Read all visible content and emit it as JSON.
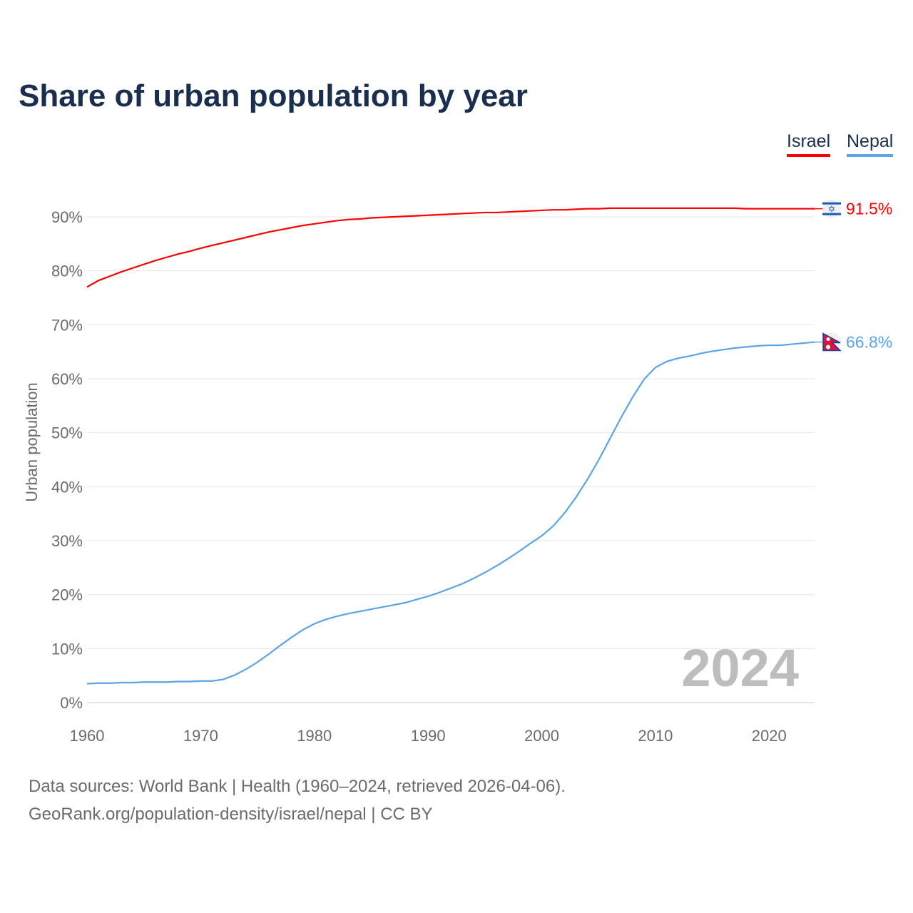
{
  "chart_data": {
    "type": "line",
    "title": "Share of urban population by year",
    "xlabel": "",
    "ylabel": "Urban population",
    "xlim": [
      1960,
      2024
    ],
    "ylim": [
      0,
      90
    ],
    "x_ticks": [
      "1960",
      "1970",
      "1980",
      "1990",
      "2000",
      "2010",
      "2020"
    ],
    "y_ticks": [
      "0%",
      "10%",
      "20%",
      "30%",
      "40%",
      "50%",
      "60%",
      "70%",
      "80%",
      "90%"
    ],
    "grid": true,
    "legend_placement": "top-right",
    "year_watermark": "2024",
    "x": [
      1960,
      1961,
      1962,
      1963,
      1964,
      1965,
      1966,
      1967,
      1968,
      1969,
      1970,
      1971,
      1972,
      1973,
      1974,
      1975,
      1976,
      1977,
      1978,
      1979,
      1980,
      1981,
      1982,
      1983,
      1984,
      1985,
      1986,
      1987,
      1988,
      1989,
      1990,
      1991,
      1992,
      1993,
      1994,
      1995,
      1996,
      1997,
      1998,
      1999,
      2000,
      2001,
      2002,
      2003,
      2004,
      2005,
      2006,
      2007,
      2008,
      2009,
      2010,
      2011,
      2012,
      2013,
      2014,
      2015,
      2016,
      2017,
      2018,
      2019,
      2020,
      2021,
      2022,
      2023,
      2024
    ],
    "series": [
      {
        "name": "Israel",
        "color": "#ff0000",
        "end_label": "91.5%",
        "flag": "israel-flag",
        "values": [
          77.0,
          78.2,
          79.0,
          79.8,
          80.5,
          81.2,
          81.9,
          82.5,
          83.1,
          83.6,
          84.2,
          84.7,
          85.2,
          85.7,
          86.2,
          86.7,
          87.2,
          87.6,
          88.0,
          88.4,
          88.7,
          89.0,
          89.3,
          89.5,
          89.6,
          89.8,
          89.9,
          90.0,
          90.1,
          90.2,
          90.3,
          90.4,
          90.5,
          90.6,
          90.7,
          90.8,
          90.8,
          90.9,
          91.0,
          91.1,
          91.2,
          91.3,
          91.3,
          91.4,
          91.5,
          91.5,
          91.6,
          91.6,
          91.6,
          91.6,
          91.6,
          91.6,
          91.6,
          91.6,
          91.6,
          91.6,
          91.6,
          91.6,
          91.5,
          91.5,
          91.5,
          91.5,
          91.5,
          91.5,
          91.5
        ]
      },
      {
        "name": "Nepal",
        "color": "#5ba4e8",
        "end_label": "66.8%",
        "flag": "nepal-flag",
        "values": [
          3.5,
          3.6,
          3.6,
          3.7,
          3.7,
          3.8,
          3.8,
          3.8,
          3.9,
          3.9,
          4.0,
          4.0,
          4.3,
          5.1,
          6.2,
          7.5,
          9.0,
          10.6,
          12.1,
          13.5,
          14.6,
          15.4,
          16.0,
          16.5,
          16.9,
          17.3,
          17.7,
          18.1,
          18.5,
          19.1,
          19.7,
          20.4,
          21.2,
          22.0,
          23.0,
          24.1,
          25.3,
          26.6,
          28.0,
          29.5,
          30.9,
          32.7,
          35.1,
          38.0,
          41.3,
          44.9,
          48.9,
          52.9,
          56.6,
          59.9,
          62.1,
          63.2,
          63.8,
          64.2,
          64.7,
          65.1,
          65.4,
          65.7,
          65.9,
          66.1,
          66.2,
          66.2,
          66.4,
          66.6,
          66.8
        ]
      }
    ]
  },
  "footer": {
    "line1": "Data sources: World Bank | Health (1960–2024, retrieved 2026-04-06).",
    "line2": "GeoRank.org/population-density/israel/nepal | CC BY"
  }
}
